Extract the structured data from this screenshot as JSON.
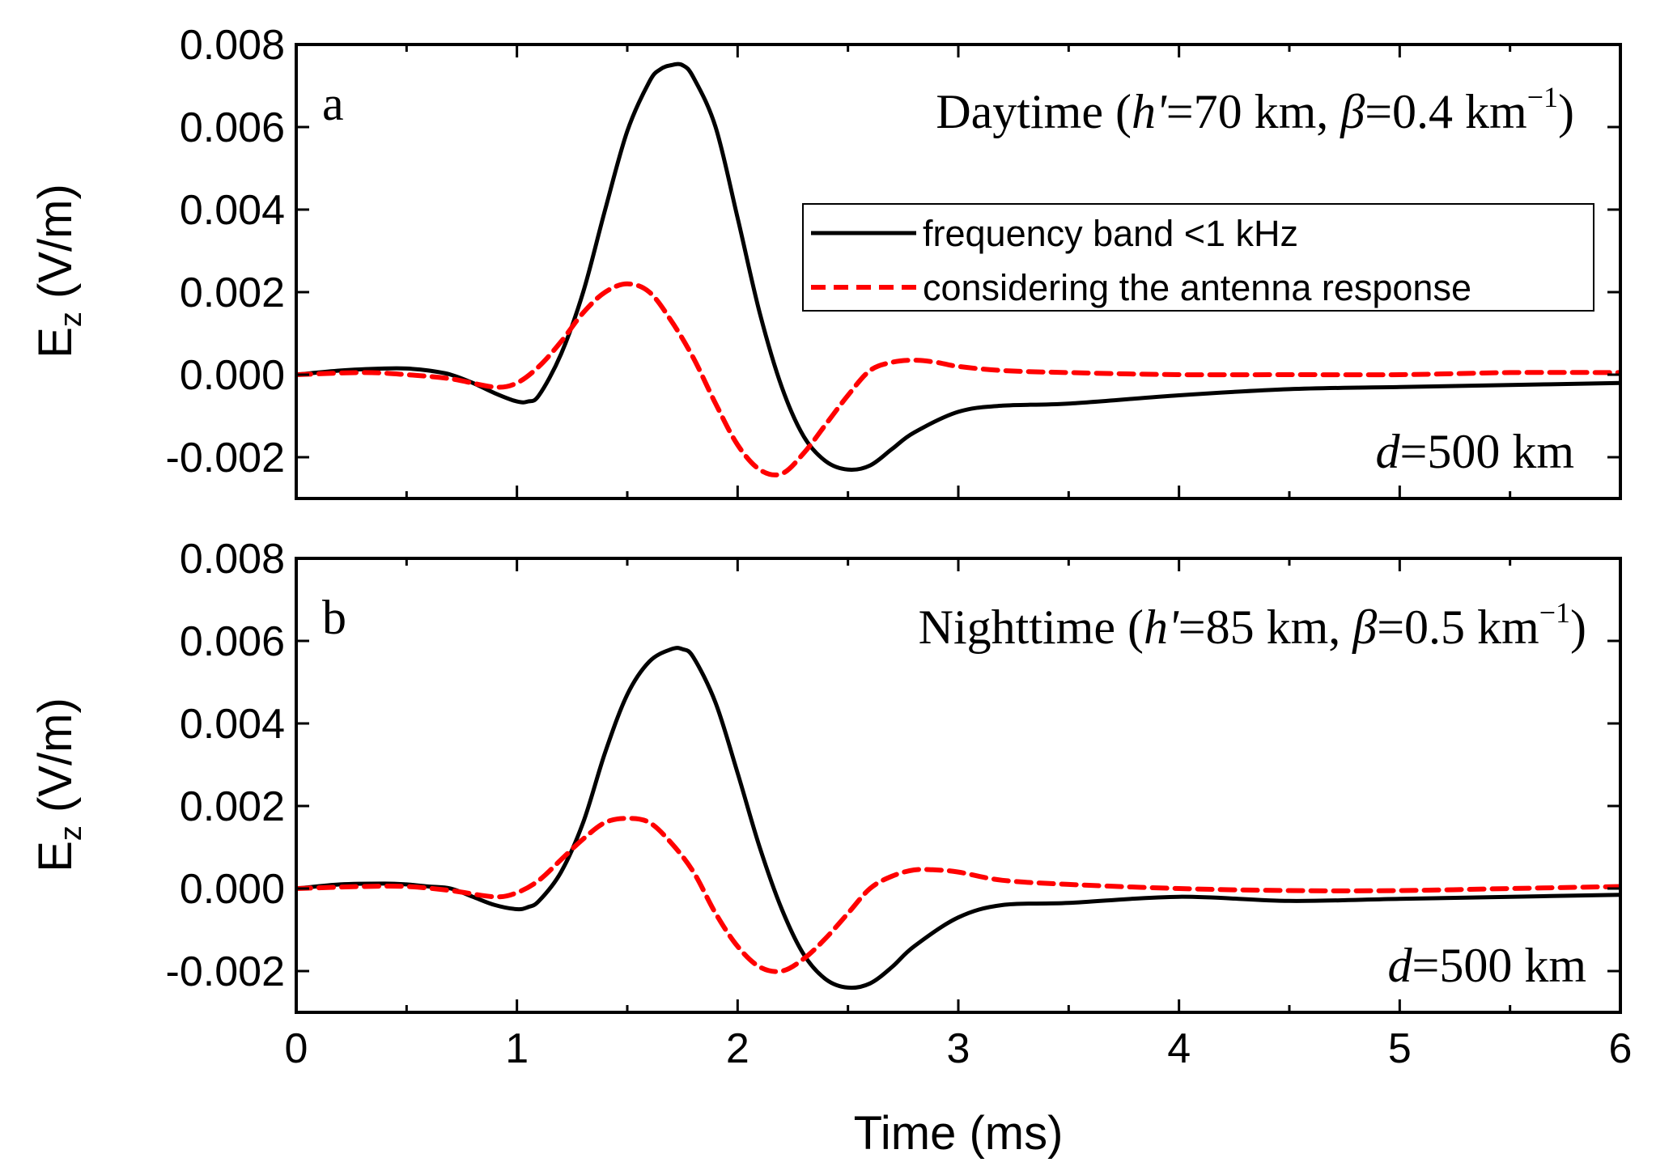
{
  "chart_data": [
    {
      "type": "line",
      "panel_label": "a",
      "title": "",
      "xlabel": "Time (ms)",
      "ylabel": "E_z (V/m)",
      "xlim": [
        0,
        6
      ],
      "ylim": [
        -0.003,
        0.008
      ],
      "x_ticks": [
        0,
        1,
        2,
        3,
        4,
        5,
        6
      ],
      "x_tick_labels": [
        "0",
        "1",
        "2",
        "3",
        "4",
        "5",
        "6"
      ],
      "y_ticks": [
        -0.002,
        0.0,
        0.002,
        0.004,
        0.006,
        0.008
      ],
      "y_tick_labels": [
        "-0.002",
        "0.000",
        "0.002",
        "0.004",
        "0.006",
        "0.008"
      ],
      "annotation_conditions": {
        "prefix": "Daytime (",
        "h_symbol": "h'",
        "h_value": "=70 km, ",
        "beta_symbol": "β",
        "beta_value": "=0.4 km",
        "beta_unit_exp": "−1",
        "suffix": ")"
      },
      "annotation_distance": {
        "symbol": "d",
        "value": "=500 km"
      },
      "legend_placement": "upper-right, inside",
      "grid": false,
      "series": [
        {
          "name": "frequency band <1 kHz",
          "color": "#000000",
          "style": "solid",
          "x": [
            0,
            0.2,
            0.4,
            0.5,
            0.6,
            0.7,
            0.8,
            0.9,
            1.0,
            1.05,
            1.1,
            1.2,
            1.3,
            1.4,
            1.5,
            1.6,
            1.65,
            1.7,
            1.75,
            1.8,
            1.9,
            2.0,
            2.1,
            2.2,
            2.3,
            2.4,
            2.5,
            2.6,
            2.7,
            2.8,
            3.0,
            3.2,
            3.5,
            4.0,
            4.5,
            5.0,
            5.5,
            6.0
          ],
          "y": [
            0.0,
            0.0001,
            0.00015,
            0.00015,
            0.0001,
            0.0,
            -0.0002,
            -0.00045,
            -0.00065,
            -0.00065,
            -0.0005,
            0.0005,
            0.002,
            0.004,
            0.0059,
            0.0071,
            0.0074,
            0.0075,
            0.0075,
            0.0072,
            0.006,
            0.0038,
            0.0015,
            -0.0003,
            -0.0015,
            -0.0021,
            -0.0023,
            -0.0022,
            -0.0018,
            -0.0014,
            -0.0009,
            -0.00075,
            -0.0007,
            -0.0005,
            -0.00035,
            -0.0003,
            -0.00025,
            -0.0002
          ]
        },
        {
          "name": "considering the antenna response",
          "color": "#ff0000",
          "style": "dashed",
          "x": [
            0,
            0.3,
            0.5,
            0.7,
            0.9,
            1.0,
            1.1,
            1.2,
            1.3,
            1.4,
            1.5,
            1.6,
            1.7,
            1.8,
            1.9,
            2.0,
            2.1,
            2.2,
            2.3,
            2.4,
            2.5,
            2.6,
            2.7,
            2.8,
            2.9,
            3.0,
            3.2,
            3.5,
            4.0,
            4.5,
            5.0,
            5.5,
            6.0
          ],
          "y": [
            0.0,
            5e-05,
            0.0,
            -0.0001,
            -0.0003,
            -0.0002,
            0.0002,
            0.0008,
            0.0015,
            0.002,
            0.0022,
            0.002,
            0.0013,
            0.0004,
            -0.0007,
            -0.0017,
            -0.0023,
            -0.0024,
            -0.0019,
            -0.0012,
            -0.0005,
            0.0001,
            0.0003,
            0.00035,
            0.0003,
            0.0002,
            0.0001,
            5e-05,
            0.0,
            0.0,
            0.0,
            5e-05,
            5e-05
          ]
        }
      ]
    },
    {
      "type": "line",
      "panel_label": "b",
      "title": "",
      "xlabel": "Time (ms)",
      "ylabel": "E_z (V/m)",
      "xlim": [
        0,
        6
      ],
      "ylim": [
        -0.003,
        0.008
      ],
      "x_ticks": [
        0,
        1,
        2,
        3,
        4,
        5,
        6
      ],
      "x_tick_labels": [
        "0",
        "1",
        "2",
        "3",
        "4",
        "5",
        "6"
      ],
      "y_ticks": [
        -0.002,
        0.0,
        0.002,
        0.004,
        0.006,
        0.008
      ],
      "y_tick_labels": [
        "-0.002",
        "0.000",
        "0.002",
        "0.004",
        "0.006",
        "0.008"
      ],
      "annotation_conditions": {
        "prefix": "Nighttime (",
        "h_symbol": "h'",
        "h_value": "=85 km, ",
        "beta_symbol": "β",
        "beta_value": "=0.5 km",
        "beta_unit_exp": "−1",
        "suffix": ")"
      },
      "annotation_distance": {
        "symbol": "d",
        "value": "=500 km"
      },
      "grid": false,
      "series": [
        {
          "name": "frequency band <1 kHz",
          "color": "#000000",
          "style": "solid",
          "x": [
            0,
            0.2,
            0.4,
            0.5,
            0.6,
            0.7,
            0.8,
            0.9,
            1.0,
            1.05,
            1.1,
            1.2,
            1.3,
            1.4,
            1.5,
            1.6,
            1.7,
            1.75,
            1.8,
            1.9,
            2.0,
            2.1,
            2.2,
            2.3,
            2.4,
            2.5,
            2.6,
            2.7,
            2.8,
            3.0,
            3.2,
            3.5,
            4.0,
            4.5,
            5.0,
            5.5,
            6.0
          ],
          "y": [
            0.0,
            0.0001,
            0.00012,
            0.0001,
            5e-05,
            0.0,
            -0.0002,
            -0.0004,
            -0.0005,
            -0.00045,
            -0.0003,
            0.0004,
            0.0016,
            0.0033,
            0.0047,
            0.0055,
            0.0058,
            0.0058,
            0.0056,
            0.0045,
            0.0028,
            0.001,
            -0.0005,
            -0.0016,
            -0.0022,
            -0.0024,
            -0.0023,
            -0.0019,
            -0.0014,
            -0.0007,
            -0.0004,
            -0.00035,
            -0.0002,
            -0.0003,
            -0.00025,
            -0.0002,
            -0.00015
          ]
        },
        {
          "name": "considering the antenna response",
          "color": "#ff0000",
          "style": "dashed",
          "x": [
            0,
            0.3,
            0.5,
            0.7,
            0.9,
            1.0,
            1.1,
            1.2,
            1.3,
            1.4,
            1.5,
            1.6,
            1.7,
            1.8,
            1.9,
            2.0,
            2.1,
            2.2,
            2.3,
            2.4,
            2.5,
            2.6,
            2.7,
            2.8,
            2.9,
            3.0,
            3.2,
            3.5,
            4.0,
            4.5,
            5.0,
            5.5,
            6.0
          ],
          "y": [
            0.0,
            5e-05,
            5e-05,
            -5e-05,
            -0.0002,
            -0.0001,
            0.0002,
            0.0007,
            0.0012,
            0.0016,
            0.0017,
            0.0016,
            0.0011,
            0.0004,
            -0.0006,
            -0.0014,
            -0.0019,
            -0.002,
            -0.0017,
            -0.0012,
            -0.0006,
            0.0,
            0.0003,
            0.00045,
            0.00045,
            0.0004,
            0.0002,
            0.0001,
            0.0,
            -5e-05,
            -5e-05,
            0.0,
            5e-05
          ]
        }
      ]
    }
  ]
}
